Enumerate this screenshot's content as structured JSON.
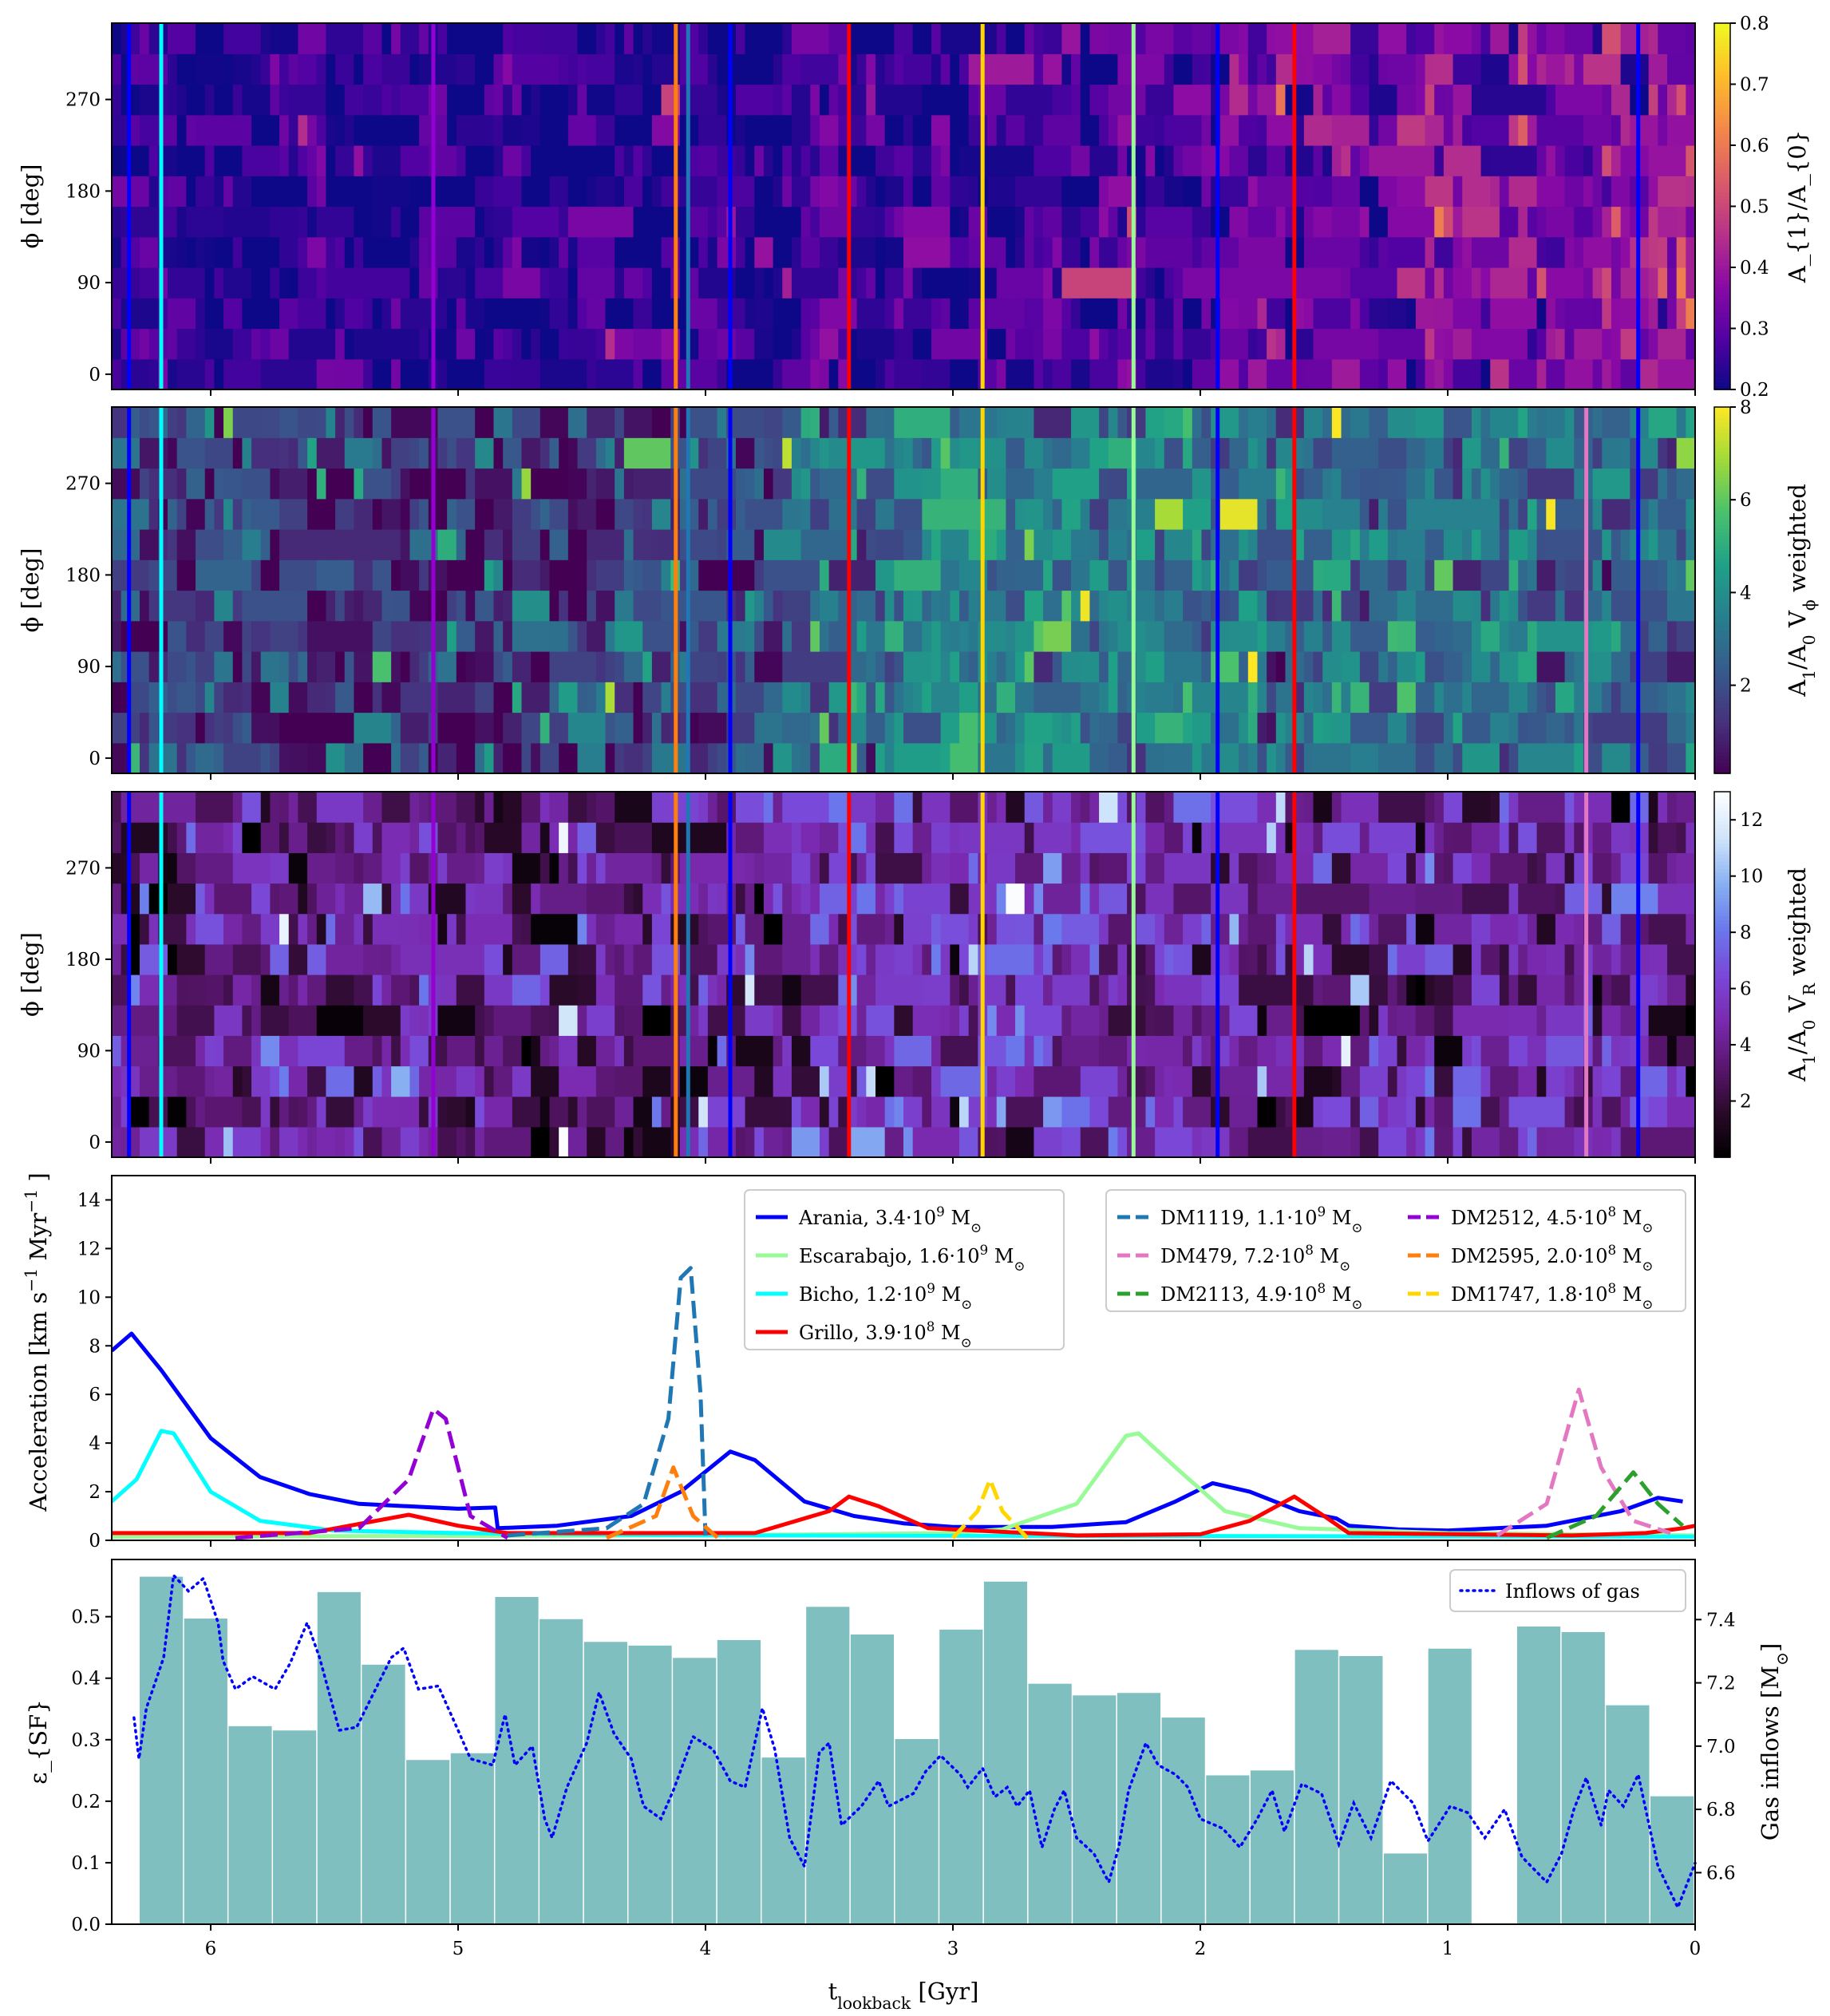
{
  "chart_data": [
    {
      "type": "heatmap",
      "ylabel": "ϕ [deg]",
      "yticks": [
        0,
        90,
        180,
        270
      ],
      "ylim": [
        -15,
        345
      ],
      "xlim": [
        6.4,
        0
      ],
      "colorbar": {
        "label": "A_{1}/A_{0}",
        "range": [
          0.2,
          0.8
        ],
        "ticks": [
          0.2,
          0.3,
          0.4,
          0.5,
          0.6,
          0.7,
          0.8
        ],
        "tick_labels": [
          "0.2",
          "0.3",
          "0.4",
          "0.5",
          "0.6",
          "0.7",
          "0.8"
        ],
        "cmap": "plasma"
      },
      "column_mean_trend": [
        0.25,
        0.24,
        0.23,
        0.23,
        0.23,
        0.24,
        0.24,
        0.25,
        0.25,
        0.26,
        0.27,
        0.3,
        0.33,
        0.36,
        0.4,
        0.42
      ],
      "spread": 0.07,
      "seed": 11
    },
    {
      "type": "heatmap",
      "ylabel": "ϕ [deg]",
      "yticks": [
        0,
        90,
        180,
        270
      ],
      "ylim": [
        -15,
        345
      ],
      "xlim": [
        6.4,
        0
      ],
      "colorbar": {
        "label": "A_{1}/A_{0} V_{ϕ} weighted",
        "range": [
          0.1,
          8
        ],
        "ticks": [
          2,
          4,
          6,
          8
        ],
        "tick_labels": [
          "2",
          "4",
          "6",
          "8"
        ],
        "cmap": "viridis"
      },
      "column_mean_trend": [
        1.6,
        1.5,
        1.2,
        1.2,
        1.3,
        1.6,
        2.0,
        3.2,
        3.4,
        3.4,
        3.2,
        3.0,
        3.0,
        3.0,
        3.0,
        2.8
      ],
      "spread": 1.3,
      "seed": 23
    },
    {
      "type": "heatmap",
      "ylabel": "ϕ [deg]",
      "yticks": [
        0,
        90,
        180,
        270
      ],
      "ylim": [
        -15,
        345
      ],
      "xlim": [
        6.4,
        0
      ],
      "colorbar": {
        "label": "A_{1}/A_{0} V_{R} weighted",
        "range": [
          0,
          13
        ],
        "ticks": [
          2,
          4,
          6,
          8,
          10,
          12
        ],
        "tick_labels": [
          "2",
          "4",
          "6",
          "8",
          "10",
          "12"
        ],
        "cmap": "purple-blue-white"
      },
      "column_mean_trend": [
        3.5,
        3.5,
        3.8,
        4.0,
        3.8,
        4.0,
        4.5,
        5.0,
        5.0,
        5.0,
        4.8,
        4.0,
        4.2,
        4.5,
        4.3,
        3.5
      ],
      "spread": 2.2,
      "seed": 37
    },
    {
      "type": "line",
      "ylabel": "Acceleration [km s^{−1} Myr^{−1} ]",
      "ylim": [
        0,
        15
      ],
      "xlim": [
        6.4,
        0
      ],
      "yticks": [
        0,
        2,
        4,
        6,
        8,
        10,
        12,
        14
      ],
      "legend": [
        "top-center",
        "top-right"
      ],
      "series": [
        {
          "name": "Arania, 3.4·10^{9} M_{⊙}",
          "color": "#0000ff",
          "dash": false,
          "legend_box": 0,
          "x": [
            6.4,
            6.32,
            6.2,
            6.0,
            5.8,
            5.6,
            5.4,
            5.0,
            4.85,
            4.84,
            4.6,
            4.3,
            4.1,
            3.9,
            3.8,
            3.6,
            3.4,
            3.2,
            3.0,
            2.6,
            2.3,
            2.1,
            1.95,
            1.8,
            1.6,
            1.45,
            1.4,
            1.2,
            1.0,
            0.6,
            0.3,
            0.15,
            0.05
          ],
          "y": [
            7.8,
            8.5,
            7.0,
            4.2,
            2.6,
            1.9,
            1.5,
            1.3,
            1.35,
            0.5,
            0.6,
            1.0,
            2.0,
            3.65,
            3.3,
            1.6,
            1.0,
            0.7,
            0.55,
            0.55,
            0.75,
            1.6,
            2.35,
            2.0,
            1.2,
            0.9,
            0.6,
            0.45,
            0.4,
            0.6,
            1.2,
            1.75,
            1.6
          ]
        },
        {
          "name": "Escarabajo, 1.6·10^{9} M_{⊙}",
          "color": "#98fb98",
          "dash": false,
          "legend_box": 0,
          "x": [
            6.4,
            4.0,
            3.0,
            2.8,
            2.5,
            2.3,
            2.25,
            2.1,
            1.9,
            1.6,
            1.0,
            0.0
          ],
          "y": [
            0.15,
            0.2,
            0.3,
            0.45,
            1.5,
            4.3,
            4.4,
            3.0,
            1.2,
            0.5,
            0.3,
            0.2
          ]
        },
        {
          "name": "Bicho, 1.2·10^{9} M_{⊙}",
          "color": "#00ffff",
          "dash": false,
          "legend_box": 0,
          "x": [
            6.4,
            6.3,
            6.2,
            6.15,
            6.0,
            5.8,
            5.5,
            5.0,
            4.0,
            0.0
          ],
          "y": [
            1.6,
            2.5,
            4.5,
            4.4,
            2.0,
            0.8,
            0.4,
            0.3,
            0.2,
            0.15
          ]
        },
        {
          "name": "Grillo, 3.9·10^{8} M_{⊙}",
          "color": "#ff0000",
          "dash": false,
          "legend_box": 0,
          "x": [
            6.4,
            5.6,
            5.2,
            5.0,
            4.8,
            3.8,
            3.5,
            3.42,
            3.3,
            3.1,
            2.5,
            2.0,
            1.8,
            1.62,
            1.5,
            1.4,
            0.5,
            0.2,
            0.05,
            0.0
          ],
          "y": [
            0.3,
            0.3,
            1.05,
            0.6,
            0.3,
            0.3,
            1.2,
            1.8,
            1.4,
            0.5,
            0.2,
            0.25,
            0.8,
            1.8,
            1.0,
            0.3,
            0.2,
            0.3,
            0.5,
            0.6
          ]
        },
        {
          "name": "DM1119, 1.1·10^{9} M_{⊙}",
          "color": "#1f77b4",
          "dash": true,
          "legend_box": 1,
          "x": [
            4.8,
            4.4,
            4.25,
            4.15,
            4.1,
            4.06,
            4.02,
            4.0
          ],
          "y": [
            0.2,
            0.5,
            1.5,
            5.0,
            10.8,
            11.2,
            6.0,
            0.2
          ]
        },
        {
          "name": "DM479, 7.2·10^{8} M_{⊙}",
          "color": "#e377c2",
          "dash": true,
          "legend_box": 1,
          "x": [
            0.8,
            0.6,
            0.47,
            0.38,
            0.25,
            0.1
          ],
          "y": [
            0.2,
            1.5,
            6.2,
            3.0,
            0.8,
            0.3
          ]
        },
        {
          "name": "DM2113, 4.9·10^{8} M_{⊙}",
          "color": "#2ca02c",
          "dash": true,
          "legend_box": 1,
          "x": [
            0.6,
            0.4,
            0.25,
            0.15,
            0.05
          ],
          "y": [
            0.1,
            1.0,
            2.8,
            1.5,
            0.6
          ]
        },
        {
          "name": "DM2512, 4.5·10^{8} M_{⊙}",
          "color": "#9400d3",
          "dash": true,
          "legend_box": 1,
          "x": [
            5.9,
            5.4,
            5.2,
            5.1,
            5.05,
            4.95,
            4.8
          ],
          "y": [
            0.1,
            0.5,
            2.5,
            5.4,
            5.0,
            1.0,
            0.1
          ]
        },
        {
          "name": "DM2595, 2.0·10^{8} M_{⊙}",
          "color": "#ff7f0e",
          "dash": true,
          "legend_box": 1,
          "x": [
            4.4,
            4.2,
            4.13,
            4.05,
            3.95
          ],
          "y": [
            0.1,
            1.0,
            3.0,
            1.0,
            0.1
          ]
        },
        {
          "name": "DM1747, 1.8·10^{8} M_{⊙}",
          "color": "#ffd700",
          "dash": true,
          "legend_box": 1,
          "x": [
            3.0,
            2.9,
            2.85,
            2.8,
            2.7
          ],
          "y": [
            0.1,
            1.2,
            2.5,
            1.2,
            0.1
          ]
        }
      ]
    },
    {
      "type": "bar",
      "ylabel": "ε_{SF}",
      "ylabel_right": "Gas inflows [M_{⊙}]",
      "xlabel": "t_{lookback} [Gyr]",
      "xlim": [
        6.4,
        0
      ],
      "xticks": [
        6,
        5,
        4,
        3,
        2,
        1,
        0
      ],
      "xtick_labels": [
        "6",
        "5",
        "4",
        "3",
        "2",
        "1",
        "0"
      ],
      "ylim": [
        0,
        0.593
      ],
      "yticks": [
        0.0,
        0.1,
        0.2,
        0.3,
        0.4,
        0.5
      ],
      "ytick_labels": [
        "0.0",
        "0.1",
        "0.2",
        "0.3",
        "0.4",
        "0.5"
      ],
      "ylim_right": [
        6.437,
        7.59
      ],
      "yticks_right": [
        6.6,
        6.8,
        7.0,
        7.2,
        7.4
      ],
      "ytick_labels_right": [
        "6.6",
        "6.8",
        "7.0",
        "7.2",
        "7.4"
      ],
      "bar_color": "#7fbfbf",
      "bar_start": 6.287,
      "bar_width": 0.1796,
      "bars": [
        0.565,
        0.497,
        0.322,
        0.315,
        0.54,
        0.422,
        0.267,
        0.278,
        0.532,
        0.496,
        0.459,
        0.453,
        0.433,
        0.462,
        0.271,
        0.516,
        0.471,
        0.301,
        0.479,
        0.557,
        0.391,
        0.372,
        0.376,
        0.336,
        0.242,
        0.25,
        0.446,
        0.436,
        0.115,
        0.448,
        0,
        0.484,
        0.475,
        0.356,
        0.208
      ],
      "line": {
        "name": "Inflows of gas",
        "color": "#0000ff",
        "legend": "top-right",
        "x": [
          6.31,
          6.29,
          6.26,
          6.19,
          6.15,
          6.09,
          6.03,
          5.97,
          5.95,
          5.9,
          5.83,
          5.74,
          5.68,
          5.61,
          5.56,
          5.48,
          5.41,
          5.34,
          5.27,
          5.22,
          5.16,
          5.08,
          5.0,
          4.95,
          4.86,
          4.81,
          4.77,
          4.7,
          4.65,
          4.62,
          4.56,
          4.48,
          4.43,
          4.37,
          4.3,
          4.25,
          4.18,
          4.13,
          4.05,
          3.97,
          3.9,
          3.84,
          3.77,
          3.72,
          3.66,
          3.6,
          3.54,
          3.5,
          3.45,
          3.37,
          3.3,
          3.26,
          3.16,
          3.11,
          3.05,
          2.97,
          2.94,
          2.88,
          2.83,
          2.78,
          2.74,
          2.69,
          2.64,
          2.59,
          2.55,
          2.5,
          2.43,
          2.37,
          2.33,
          2.29,
          2.22,
          2.17,
          2.1,
          2.05,
          2.0,
          1.91,
          1.84,
          1.77,
          1.71,
          1.66,
          1.59,
          1.51,
          1.44,
          1.38,
          1.31,
          1.23,
          1.14,
          1.08,
          0.99,
          0.92,
          0.85,
          0.77,
          0.7,
          0.6,
          0.54,
          0.49,
          0.44,
          0.38,
          0.35,
          0.29,
          0.23,
          0.15,
          0.07,
          0.0
        ],
        "y": [
          7.09,
          6.96,
          7.12,
          7.28,
          7.54,
          7.49,
          7.53,
          7.39,
          7.27,
          7.18,
          7.22,
          7.18,
          7.26,
          7.39,
          7.28,
          7.05,
          7.06,
          7.17,
          7.28,
          7.31,
          7.18,
          7.19,
          7.05,
          6.96,
          6.94,
          7.1,
          6.94,
          7.0,
          6.77,
          6.71,
          6.87,
          7.01,
          7.17,
          7.04,
          6.96,
          6.81,
          6.77,
          6.86,
          7.03,
          6.99,
          6.89,
          6.87,
          7.12,
          6.99,
          6.71,
          6.62,
          6.98,
          7.01,
          6.75,
          6.81,
          6.89,
          6.81,
          6.85,
          6.92,
          6.97,
          6.91,
          6.87,
          6.93,
          6.84,
          6.87,
          6.81,
          6.86,
          6.68,
          6.8,
          6.86,
          6.71,
          6.66,
          6.57,
          6.68,
          6.86,
          7.01,
          6.94,
          6.91,
          6.87,
          6.77,
          6.74,
          6.68,
          6.77,
          6.86,
          6.73,
          6.88,
          6.85,
          6.69,
          6.82,
          6.71,
          6.89,
          6.82,
          6.7,
          6.81,
          6.79,
          6.71,
          6.8,
          6.65,
          6.57,
          6.66,
          6.8,
          6.9,
          6.75,
          6.86,
          6.81,
          6.91,
          6.62,
          6.49,
          6.63
        ]
      }
    }
  ],
  "event_lines": [
    {
      "t": 6.33,
      "color": "#0000ff",
      "panels": [
        0,
        1,
        2
      ]
    },
    {
      "t": 6.2,
      "color": "#00ffff",
      "panels": [
        0,
        1,
        2
      ]
    },
    {
      "t": 5.1,
      "color": "#9400d3",
      "panels": [
        0,
        1,
        2
      ]
    },
    {
      "t": 4.12,
      "color": "#ff7f0e",
      "panels": [
        0,
        1,
        2
      ]
    },
    {
      "t": 4.07,
      "color": "#1f77b4",
      "panels": [
        0,
        1,
        2
      ]
    },
    {
      "t": 3.9,
      "color": "#0000ff",
      "panels": [
        0,
        1,
        2
      ]
    },
    {
      "t": 3.42,
      "color": "#ff0000",
      "panels": [
        0,
        1,
        2
      ]
    },
    {
      "t": 2.88,
      "color": "#ffd700",
      "panels": [
        0,
        1,
        2
      ]
    },
    {
      "t": 2.27,
      "color": "#98fb98",
      "panels": [
        0,
        1,
        2
      ]
    },
    {
      "t": 1.93,
      "color": "#0000ff",
      "panels": [
        0,
        1,
        2
      ]
    },
    {
      "t": 1.62,
      "color": "#ff0000",
      "panels": [
        0,
        1,
        2
      ]
    },
    {
      "t": 0.44,
      "color": "#e377c2",
      "panels": [
        1,
        2
      ]
    },
    {
      "t": 0.23,
      "color": "#0000ff",
      "panels": [
        0,
        1,
        2
      ]
    }
  ]
}
